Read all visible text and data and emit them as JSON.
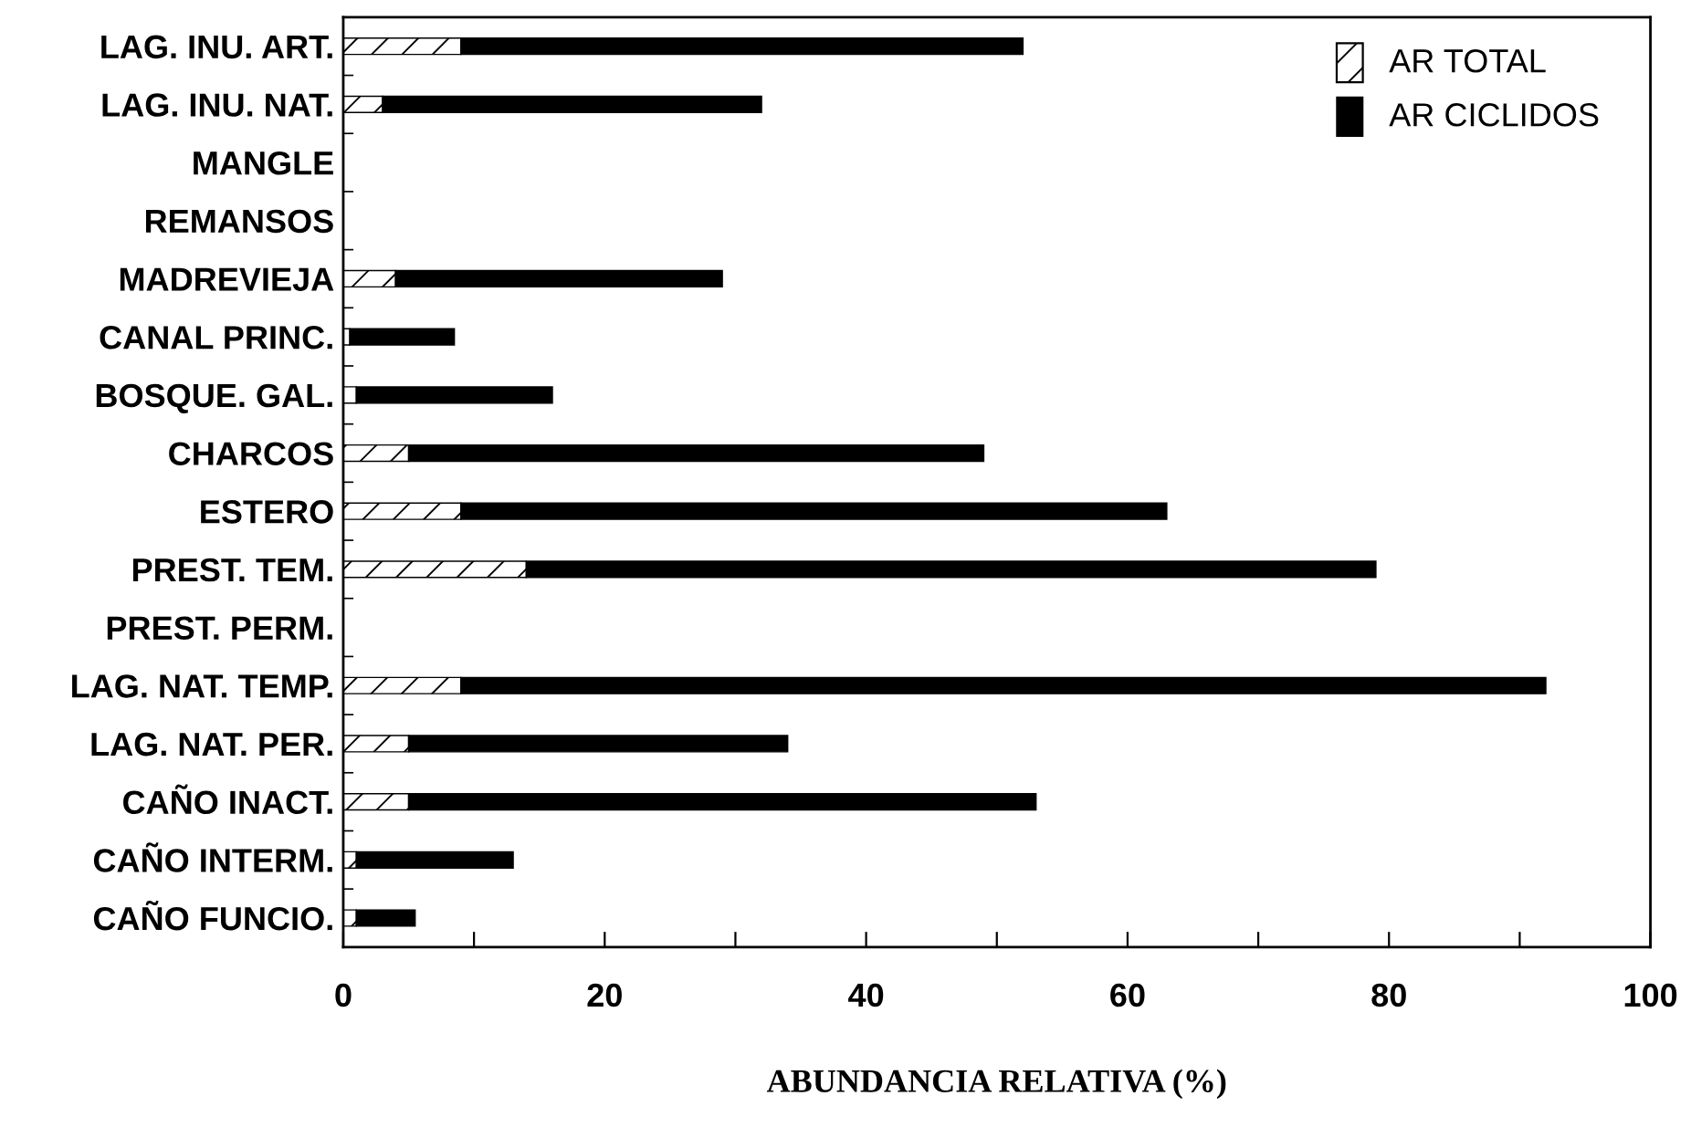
{
  "chart_data": {
    "type": "bar",
    "orientation": "horizontal",
    "stacked": true,
    "xlabel": "ABUNDANCIA RELATIVA (%)",
    "categories": [
      "LAG. INU. ART.",
      "LAG. INU. NAT.",
      "MANGLE",
      "REMANSOS",
      "MADREVIEJA",
      "CANAL PRINC.",
      "BOSQUE. GAL.",
      "CHARCOS",
      "ESTERO",
      "PREST. TEM.",
      "PREST. PERM.",
      "LAG. NAT. TEMP.",
      "LAG. NAT. PER.",
      "CAÑO INACT.",
      "CAÑO INTERM.",
      "CAÑO FUNCIO."
    ],
    "series": [
      {
        "name": "AR TOTAL",
        "color": "#ffffff",
        "values": [
          9,
          3,
          null,
          null,
          4,
          0.5,
          1,
          5,
          9,
          14,
          null,
          9,
          5,
          5,
          1,
          1
        ]
      },
      {
        "name": "AR CICLIDOS",
        "color": "#000000",
        "values": [
          43,
          29,
          null,
          null,
          25,
          8,
          15,
          44,
          54,
          65,
          null,
          83,
          29,
          48,
          12,
          4.5
        ]
      }
    ],
    "xlim": [
      0,
      100
    ],
    "xticks": [
      0,
      {
        "value": 10,
        "label": null
      },
      20,
      {
        "value": 30,
        "label": null
      },
      40,
      {
        "value": 50,
        "label": null
      },
      60,
      {
        "value": 70,
        "label": null
      },
      80,
      {
        "value": 90,
        "label": null
      },
      100
    ],
    "grid": false,
    "legend": "top right"
  }
}
